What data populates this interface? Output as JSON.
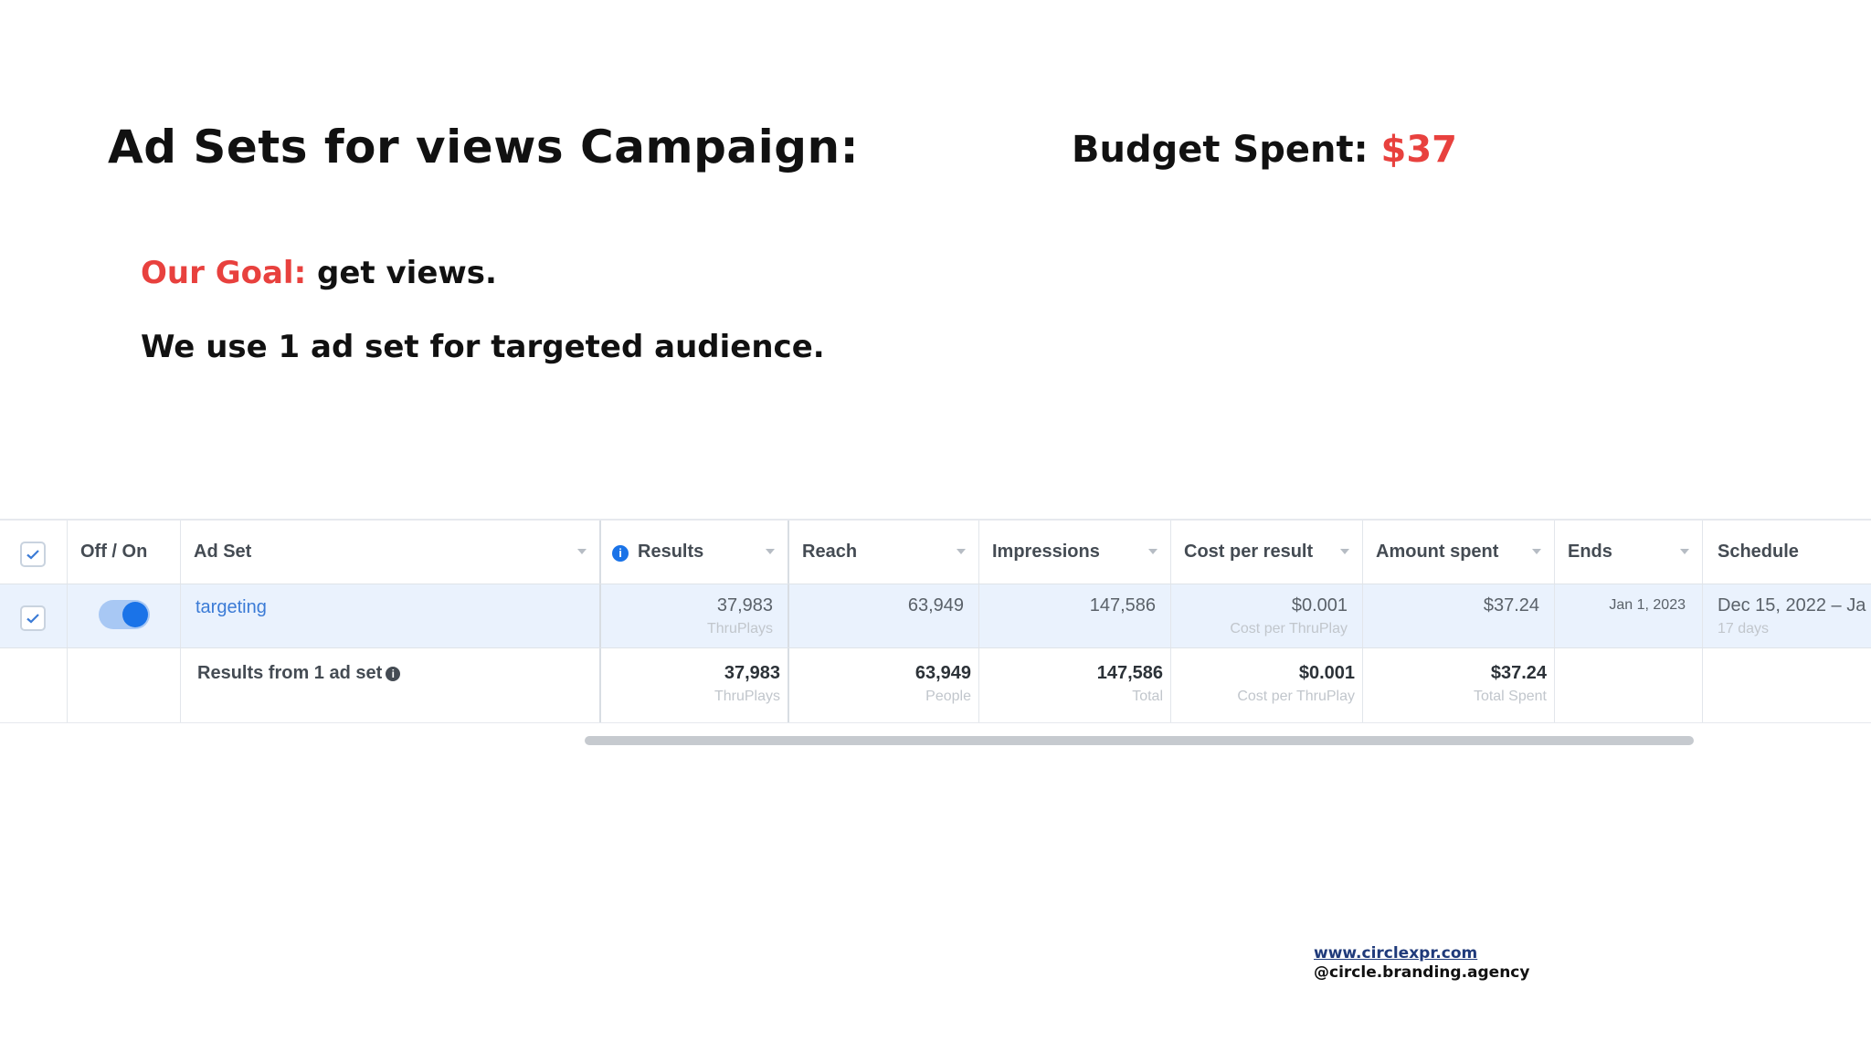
{
  "header": {
    "title": "Ad Sets for views Campaign:",
    "budget_label": "Budget Spent:",
    "budget_amount": "$37"
  },
  "body": {
    "goal_label": "Our Goal:",
    "goal_text": "get views.",
    "note": "We use 1 ad set for targeted audience."
  },
  "table": {
    "columns": [
      {
        "label": "Off / On"
      },
      {
        "label": "Ad Set"
      },
      {
        "label": "Results",
        "icon": "info-icon"
      },
      {
        "label": "Reach"
      },
      {
        "label": "Impressions"
      },
      {
        "label": "Cost per result"
      },
      {
        "label": "Amount spent"
      },
      {
        "label": "Ends"
      },
      {
        "label": "Schedule"
      }
    ],
    "row": {
      "checked": true,
      "toggle_on": true,
      "ad_set": "targeting",
      "results": "37,983",
      "results_sub": "ThruPlays",
      "reach": "63,949",
      "impressions": "147,586",
      "cost_per_result": "$0.001",
      "cost_per_result_sub": "Cost per ThruPlay",
      "amount_spent": "$37.24",
      "ends": "Jan 1, 2023",
      "schedule": "Dec 15, 2022 – Ja",
      "schedule_sub": "17 days"
    },
    "summary": {
      "label": "Results from 1 ad set",
      "results": "37,983",
      "results_sub": "ThruPlays",
      "reach": "63,949",
      "reach_sub": "People",
      "impressions": "147,586",
      "impressions_sub": "Total",
      "cost_per_result": "$0.001",
      "cost_per_result_sub": "Cost per ThruPlay",
      "amount_spent": "$37.24",
      "amount_spent_sub": "Total Spent"
    }
  },
  "footer": {
    "url": "www.circlexpr.com",
    "handle": "@circle.branding.agency"
  },
  "colors": {
    "accent": "#e8413e",
    "link": "#3b7bd6",
    "toggle": "#1a73e8",
    "selected_row": "#eaf2fd"
  }
}
